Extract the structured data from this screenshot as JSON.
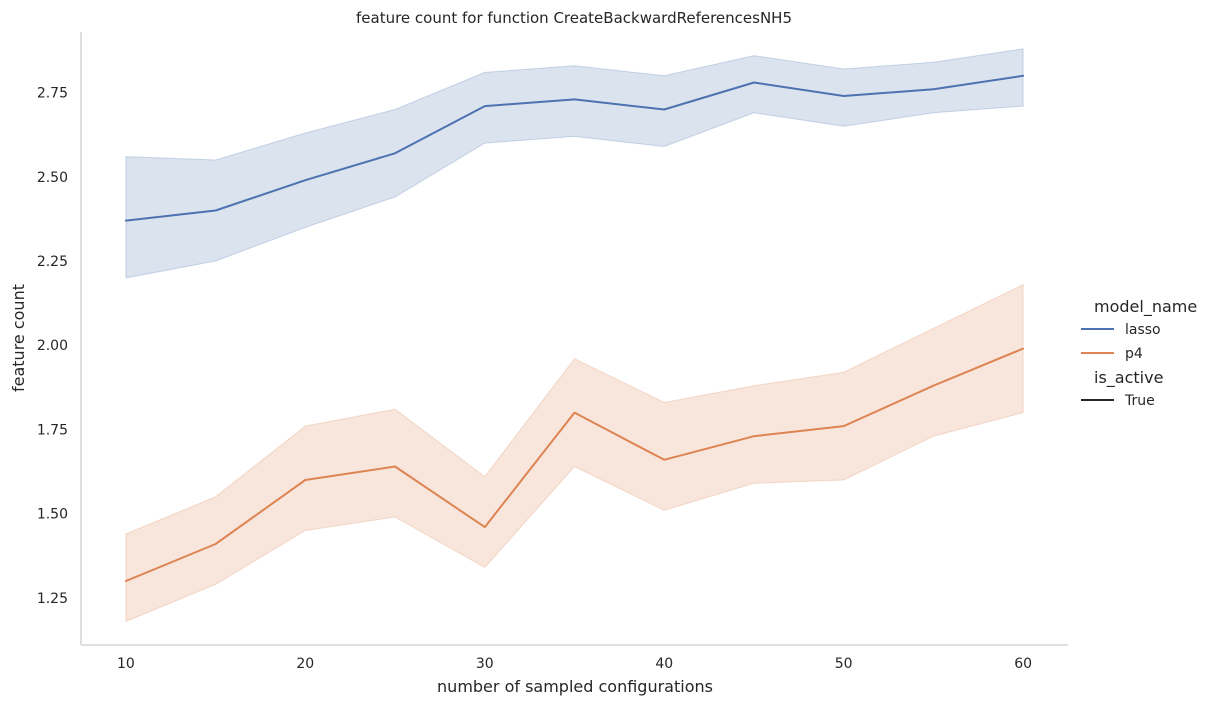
{
  "chart_data": {
    "type": "line",
    "title": "feature count for function CreateBackwardReferencesNH5",
    "xlabel": "number of sampled configurations",
    "ylabel": "feature count",
    "xlim": [
      7.5,
      62.5
    ],
    "ylim": [
      1.11,
      2.93
    ],
    "xticks": [
      10,
      20,
      30,
      40,
      50,
      60
    ],
    "xtick_labels": [
      "10",
      "20",
      "30",
      "40",
      "50",
      "60"
    ],
    "yticks": [
      1.25,
      1.5,
      1.75,
      2.0,
      2.25,
      2.5,
      2.75
    ],
    "ytick_labels": [
      "1.25",
      "1.50",
      "1.75",
      "2.00",
      "2.25",
      "2.50",
      "2.75"
    ],
    "grid": false,
    "legend_placement": "right",
    "x": [
      10,
      15,
      20,
      25,
      30,
      35,
      40,
      45,
      50,
      55,
      60
    ],
    "series": [
      {
        "name": "lasso",
        "color": "#4c72b0",
        "values": [
          2.37,
          2.4,
          2.49,
          2.57,
          2.71,
          2.73,
          2.7,
          2.78,
          2.74,
          2.76,
          2.8
        ],
        "ci_lower": [
          2.2,
          2.25,
          2.35,
          2.44,
          2.6,
          2.62,
          2.59,
          2.69,
          2.65,
          2.69,
          2.71
        ],
        "ci_upper": [
          2.56,
          2.55,
          2.63,
          2.7,
          2.81,
          2.83,
          2.8,
          2.86,
          2.82,
          2.84,
          2.88
        ]
      },
      {
        "name": "p4",
        "color": "#dd8452",
        "values": [
          1.3,
          1.41,
          1.6,
          1.64,
          1.46,
          1.8,
          1.66,
          1.73,
          1.76,
          1.88,
          1.99
        ],
        "ci_lower": [
          1.18,
          1.29,
          1.45,
          1.49,
          1.34,
          1.64,
          1.51,
          1.59,
          1.6,
          1.73,
          1.8
        ],
        "ci_upper": [
          1.44,
          1.55,
          1.76,
          1.81,
          1.61,
          1.96,
          1.83,
          1.88,
          1.92,
          2.05,
          2.18
        ]
      }
    ],
    "legend": {
      "title1": "model_name",
      "entries1": [
        {
          "label": "lasso",
          "color": "#4c72b0"
        },
        {
          "label": "p4",
          "color": "#dd8452"
        }
      ],
      "title2": "is_active",
      "entries2": [
        {
          "label": "True",
          "color": "#262626"
        }
      ]
    }
  }
}
